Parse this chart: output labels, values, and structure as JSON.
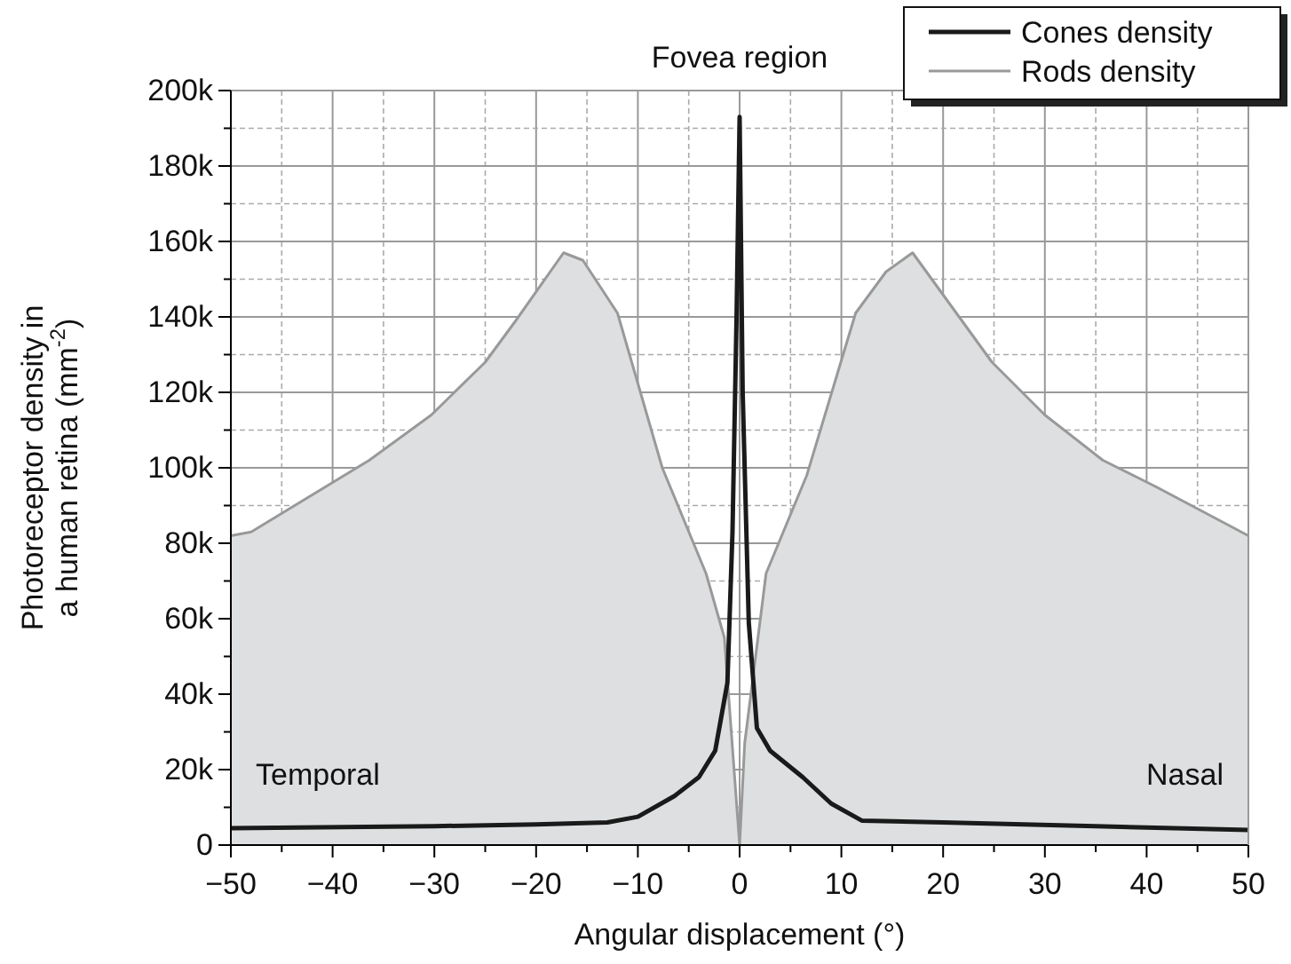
{
  "chart_data": {
    "type": "line",
    "title": "Fovea region",
    "xlabel": "Angular displacement (°)",
    "ylabel": "Photoreceptor density in a human retina (mm$^{-2}$)",
    "annotations": [
      "Temporal",
      "Nasal"
    ],
    "series": [
      {
        "name": "Cones density",
        "color": "#1a1a1a",
        "x": [
          -50,
          -30,
          -20,
          -13,
          -10,
          -6.4,
          -4,
          -2.4,
          -1.2,
          -0.7,
          -0.3,
          0,
          0.3,
          0.9,
          1.7,
          3,
          6.2,
          9,
          12,
          20,
          35,
          50
        ],
        "values": [
          4500,
          5000,
          5500,
          6000,
          7500,
          13000,
          18000,
          25000,
          43000,
          83000,
          140000,
          193000,
          120000,
          59000,
          31000,
          25000,
          18000,
          11000,
          6500,
          6000,
          5000,
          4000
        ]
      },
      {
        "name": "Rods density",
        "type": "area",
        "color": "#999999",
        "x": [
          -50,
          -48,
          -36.4,
          -30.3,
          -25,
          -22,
          -17.3,
          -15.4,
          -12,
          -7.6,
          -3.3,
          -1.5,
          0,
          0.5,
          2.6,
          6.6,
          11.4,
          14.4,
          17,
          24.8,
          30,
          35.7,
          40.9,
          50
        ],
        "values": [
          82000,
          83000,
          102000,
          114000,
          128000,
          139000,
          157000,
          155000,
          141000,
          100000,
          72000,
          55000,
          0,
          27000,
          72000,
          98000,
          141000,
          152000,
          157000,
          128000,
          114000,
          102000,
          95000,
          82000
        ]
      }
    ],
    "xlim": [
      -50,
      50
    ],
    "xticks": [
      -50,
      {
        "value": -45,
        "label": null
      },
      -40,
      {
        "value": -35,
        "label": null
      },
      -30,
      {
        "value": -25,
        "label": null
      },
      -20,
      {
        "value": -15,
        "label": null
      },
      -10,
      {
        "value": -5,
        "label": null
      },
      0,
      {
        "value": 5,
        "label": null
      },
      10,
      {
        "value": 15,
        "label": null
      },
      20,
      {
        "value": 25,
        "label": null
      },
      30,
      {
        "value": 35,
        "label": null
      },
      40,
      {
        "value": 45,
        "label": null
      },
      50
    ],
    "ylim": [
      0,
      200000
    ],
    "yticks": [
      {
        "value": 0,
        "label": "0"
      },
      {
        "value": 10000,
        "label": null
      },
      {
        "value": 20000,
        "label": "20k"
      },
      {
        "value": 30000,
        "label": null
      },
      {
        "value": 40000,
        "label": "40k"
      },
      {
        "value": 50000,
        "label": null
      },
      {
        "value": 60000,
        "label": "60k"
      },
      {
        "value": 70000,
        "label": null
      },
      {
        "value": 80000,
        "label": "80k"
      },
      {
        "value": 90000,
        "label": null
      },
      {
        "value": 100000,
        "label": "100k"
      },
      {
        "value": 110000,
        "label": null
      },
      {
        "value": 120000,
        "label": "120k"
      },
      {
        "value": 130000,
        "label": null
      },
      {
        "value": 140000,
        "label": "140k"
      },
      {
        "value": 150000,
        "label": null
      },
      {
        "value": 160000,
        "label": "160k"
      },
      {
        "value": 170000,
        "label": null
      },
      {
        "value": 180000,
        "label": "180k"
      },
      {
        "value": 190000,
        "label": null
      },
      {
        "value": 200000,
        "label": "200k"
      }
    ],
    "grid": true,
    "legend": "top right",
    "line_style": "solid",
    "marker": "none"
  }
}
